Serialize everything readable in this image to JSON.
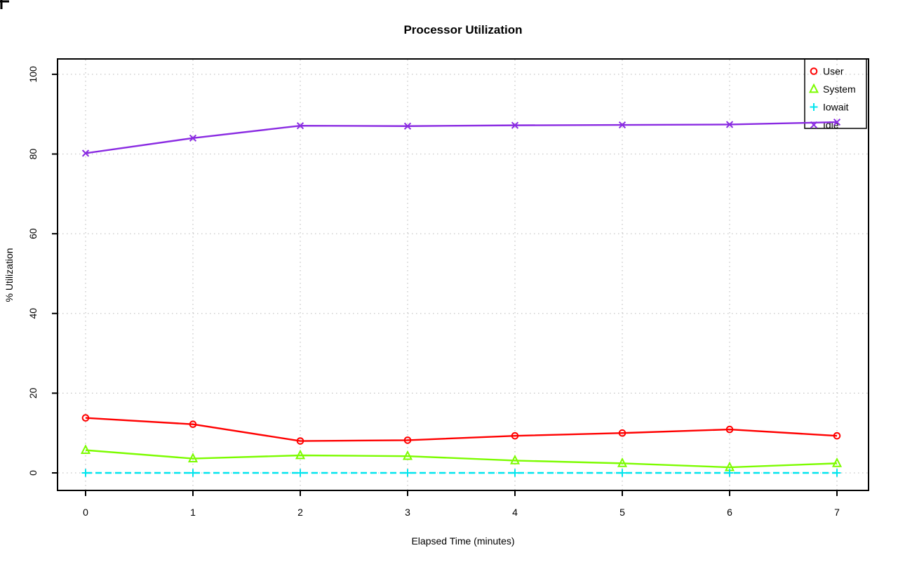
{
  "chart_data": {
    "type": "line",
    "title": "Processor Utilization",
    "xlabel": "Elapsed Time (minutes)",
    "ylabel": "% Utilization",
    "x": [
      0,
      1,
      2,
      3,
      4,
      5,
      6,
      7
    ],
    "xlim": [
      0,
      7
    ],
    "ylim": [
      0,
      100
    ],
    "x_ticks": [
      0,
      1,
      2,
      3,
      4,
      5,
      6,
      7
    ],
    "x_tick_labels": [
      "0",
      "1",
      "2",
      "3",
      "4",
      "5",
      "6",
      "7"
    ],
    "y_ticks": [
      0,
      20,
      40,
      60,
      80,
      100
    ],
    "y_tick_labels": [
      "0",
      "20",
      "40",
      "60",
      "80",
      "100"
    ],
    "grid": true,
    "grid_style": "dotted",
    "legend_position": "topright",
    "series": [
      {
        "name": "User",
        "marker": "circle",
        "color": "#ff0000",
        "linestyle": "solid",
        "values": [
          13.8,
          12.2,
          8.0,
          8.2,
          9.3,
          10.0,
          10.9,
          9.3
        ]
      },
      {
        "name": "System",
        "marker": "triangle",
        "color": "#7cfc00",
        "linestyle": "solid",
        "values": [
          5.7,
          3.6,
          4.4,
          4.2,
          3.1,
          2.4,
          1.4,
          2.4
        ]
      },
      {
        "name": "Iowait",
        "marker": "plus",
        "color": "#00e5ee",
        "linestyle": "dashed",
        "values": [
          0,
          0,
          0,
          0,
          0,
          0,
          0,
          0
        ]
      },
      {
        "name": "Idle",
        "marker": "x",
        "color": "#8a2be2",
        "linestyle": "solid",
        "values": [
          80.2,
          84.0,
          87.1,
          87.0,
          87.2,
          87.3,
          87.4,
          88.0
        ]
      }
    ]
  },
  "colors": {
    "background": "#ffffff",
    "axis": "#000000",
    "grid": "#c6c6c6",
    "text": "#000000"
  }
}
